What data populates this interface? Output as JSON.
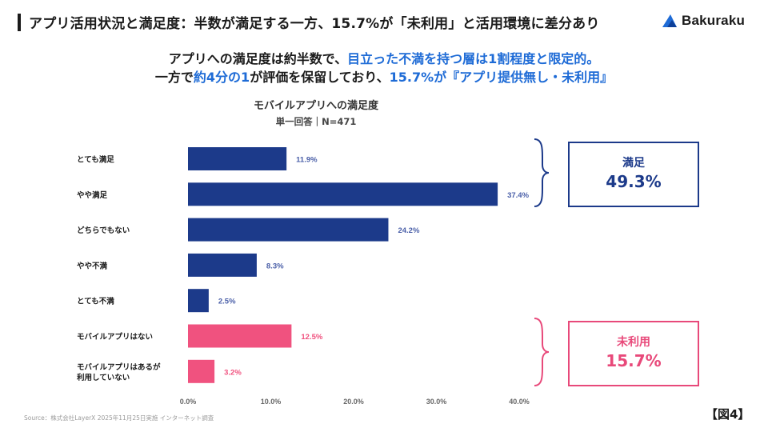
{
  "slide": {
    "title": "アプリ活用状況と満足度：半数が満足する一方、15.7%が「未利用」と活用環境に差分あり",
    "logo_text": "Bakuraku",
    "headline1_a": "アプリへの満足度は約半数で、",
    "headline1_b": "目立った不満を持つ層は1割程度と限定的。",
    "headline2_a": "一方で",
    "headline2_b": "約4分の1",
    "headline2_c": "が評価を保留しており、",
    "headline2_d": "15.7%が『アプリ提供無し・未利用』",
    "figure_label": "【図4】",
    "source": "Source：株式会社LayerX 2025年11月25日実施 インターネット調査"
  },
  "summary_boxes": {
    "satisfied_label": "満足",
    "satisfied_value": "49.3%",
    "unused_label": "未利用",
    "unused_value": "15.7%"
  },
  "colors": {
    "navy": "#1c3a8a",
    "pink": "#f0527f",
    "accent_blue": "#1e6bd6"
  },
  "chart_data": {
    "type": "bar",
    "orientation": "horizontal",
    "title": "モバイルアプリへの満足度",
    "subtitle": "単一回答｜N=471",
    "categories": [
      [
        "とても満足"
      ],
      [
        "やや満足"
      ],
      [
        "どちらでもない"
      ],
      [
        "やや不満"
      ],
      [
        "とても不満"
      ],
      [
        "モバイルアプリはない"
      ],
      [
        "モバイルアプリはあるが",
        "利用していない"
      ]
    ],
    "values": [
      11.9,
      37.4,
      24.2,
      8.3,
      2.5,
      12.5,
      3.2
    ],
    "value_labels": [
      "11.9%",
      "37.4%",
      "24.2%",
      "8.3%",
      "2.5%",
      "12.5%",
      "3.2%"
    ],
    "bar_colors": [
      "#1c3a8a",
      "#1c3a8a",
      "#1c3a8a",
      "#1c3a8a",
      "#1c3a8a",
      "#f0527f",
      "#f0527f"
    ],
    "label_colors": [
      "#4a5fa8",
      "#4a5fa8",
      "#4a5fa8",
      "#4a5fa8",
      "#4a5fa8",
      "#f0527f",
      "#f0527f"
    ],
    "xlim": [
      0,
      40
    ],
    "xticks": [
      0,
      10,
      20,
      30,
      40
    ],
    "xtick_labels": [
      "0.0%",
      "10.0%",
      "20.0%",
      "30.0%",
      "40.0%"
    ],
    "grid": false
  }
}
